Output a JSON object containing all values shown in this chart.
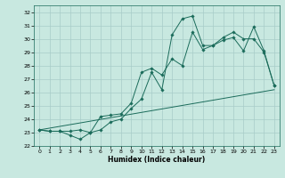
{
  "title": "",
  "xlabel": "Humidex (Indice chaleur)",
  "ylabel": "",
  "xlim": [
    -0.5,
    23.5
  ],
  "ylim": [
    22,
    32.5
  ],
  "yticks": [
    22,
    23,
    24,
    25,
    26,
    27,
    28,
    29,
    30,
    31,
    32
  ],
  "xticks": [
    0,
    1,
    2,
    3,
    4,
    5,
    6,
    7,
    8,
    9,
    10,
    11,
    12,
    13,
    14,
    15,
    16,
    17,
    18,
    19,
    20,
    21,
    22,
    23
  ],
  "bg_color": "#c8e8e0",
  "grid_color": "#a8ccc8",
  "line_color": "#1a6b5a",
  "line1_x": [
    0,
    1,
    2,
    3,
    4,
    5,
    6,
    7,
    8,
    9,
    10,
    11,
    12,
    13,
    14,
    15,
    16,
    17,
    18,
    19,
    20,
    21,
    22,
    23
  ],
  "line1_y": [
    23.2,
    23.1,
    23.1,
    22.8,
    22.5,
    23.0,
    23.2,
    23.8,
    24.0,
    24.8,
    25.5,
    27.5,
    26.2,
    30.3,
    31.5,
    31.7,
    29.5,
    29.5,
    29.9,
    30.1,
    29.1,
    30.9,
    29.1,
    26.5
  ],
  "line2_x": [
    0,
    1,
    2,
    3,
    4,
    5,
    6,
    7,
    8,
    9,
    10,
    11,
    12,
    13,
    14,
    15,
    16,
    17,
    18,
    19,
    20,
    21,
    22,
    23
  ],
  "line2_y": [
    23.2,
    23.1,
    23.1,
    23.1,
    23.2,
    23.0,
    24.2,
    24.3,
    24.4,
    25.2,
    27.5,
    27.8,
    27.3,
    28.5,
    28.0,
    30.5,
    29.2,
    29.5,
    30.1,
    30.5,
    30.0,
    30.0,
    29.0,
    26.5
  ],
  "line3_x": [
    0,
    23
  ],
  "line3_y": [
    23.2,
    26.2
  ],
  "marker": "D",
  "markersize": 1.8,
  "linewidth": 0.7,
  "tick_fontsize": 4.5,
  "xlabel_fontsize": 5.5
}
